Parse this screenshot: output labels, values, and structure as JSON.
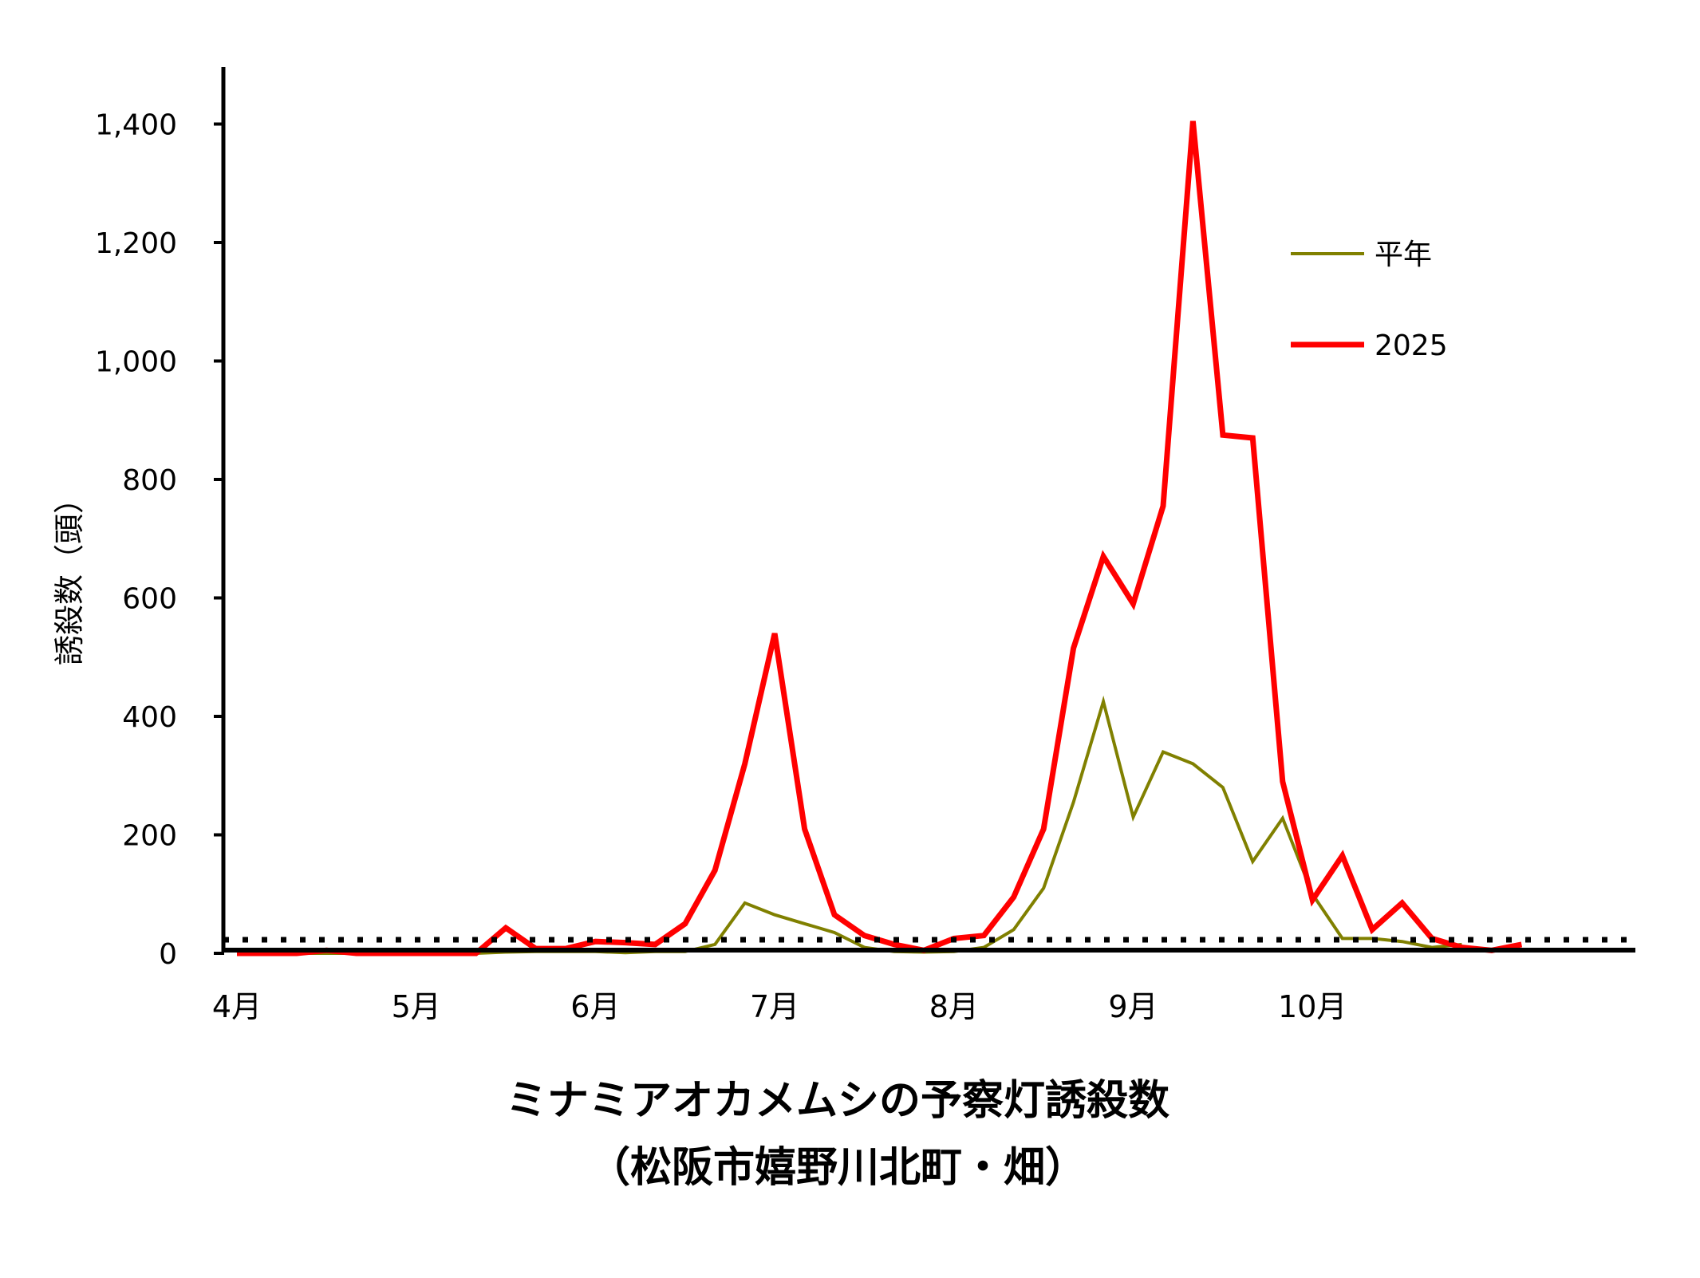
{
  "chart_data": {
    "type": "line",
    "title": "ミナミアオカメムシの予察灯誘殺数",
    "subtitle": "（松阪市嬉野川北町・畑）",
    "ylabel": "誘殺数（頭）",
    "xlabel": "",
    "ylim": [
      0,
      1500
    ],
    "yticks": [
      {
        "value": 0,
        "label": "0"
      },
      {
        "value": 200,
        "label": "200"
      },
      {
        "value": 400,
        "label": "400"
      },
      {
        "value": 600,
        "label": "600"
      },
      {
        "value": 800,
        "label": "800"
      },
      {
        "value": 1000,
        "label": "1,000"
      },
      {
        "value": 1200,
        "label": "1,200"
      },
      {
        "value": 1400,
        "label": "1,400"
      }
    ],
    "period_count": 48,
    "month_labels": [
      {
        "index": 0,
        "label": "4月"
      },
      {
        "index": 6,
        "label": "5月"
      },
      {
        "index": 12,
        "label": "6月"
      },
      {
        "index": 18,
        "label": "7月"
      },
      {
        "index": 24,
        "label": "8月"
      },
      {
        "index": 30,
        "label": "9月"
      },
      {
        "index": 36,
        "label": "10月"
      }
    ],
    "grid": false,
    "legend_position": "top-right",
    "series": [
      {
        "name": "平年",
        "color": "#808000",
        "values": [
          0,
          0,
          0,
          0,
          0,
          0,
          0,
          0,
          0,
          2,
          3,
          3,
          3,
          1,
          3,
          3,
          15,
          85,
          65,
          50,
          35,
          10,
          3,
          2,
          3,
          10,
          40,
          110,
          255,
          425,
          230,
          340,
          320,
          280,
          155,
          228,
          100,
          25,
          25,
          20,
          10,
          15
        ]
      },
      {
        "name": "2025",
        "color": "#ff0000",
        "values": [
          0,
          0,
          0,
          5,
          0,
          0,
          0,
          0,
          0,
          43,
          8,
          8,
          20,
          18,
          15,
          50,
          140,
          320,
          540,
          210,
          65,
          30,
          15,
          5,
          25,
          30,
          95,
          210,
          515,
          670,
          590,
          755,
          1405,
          875,
          870,
          290,
          90,
          165,
          40,
          85,
          25,
          10,
          5,
          15
        ]
      }
    ]
  }
}
